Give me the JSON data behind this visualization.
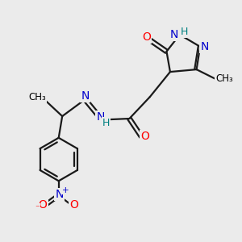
{
  "bg_color": "#ebebeb",
  "atom_colors": {
    "C": "#000000",
    "N": "#0000cc",
    "O": "#ff0000",
    "H": "#008080"
  },
  "bond_color": "#1a1a1a",
  "bond_width": 1.6,
  "font_size_main": 10,
  "font_size_small": 8.5,
  "font_size_h": 9
}
